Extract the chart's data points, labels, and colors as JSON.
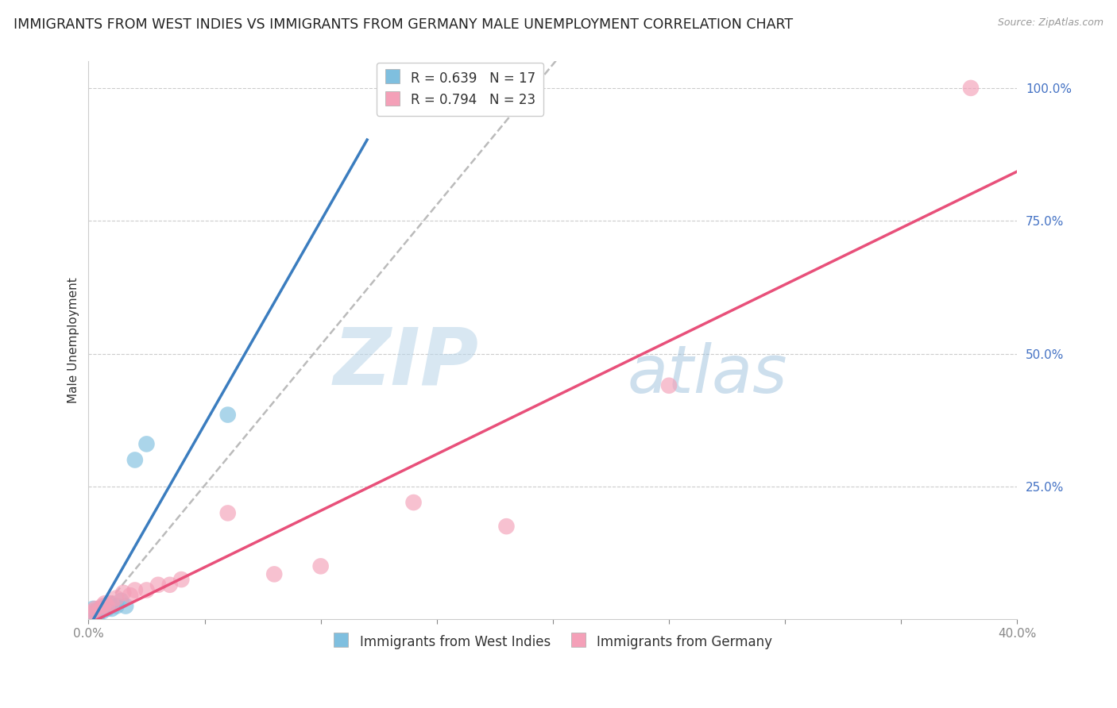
{
  "title": "IMMIGRANTS FROM WEST INDIES VS IMMIGRANTS FROM GERMANY MALE UNEMPLOYMENT CORRELATION CHART",
  "source": "Source: ZipAtlas.com",
  "ylabel": "Male Unemployment",
  "xlim": [
    0.0,
    0.4
  ],
  "ylim": [
    0.0,
    1.05
  ],
  "xticks": [
    0.0,
    0.05,
    0.1,
    0.15,
    0.2,
    0.25,
    0.3,
    0.35,
    0.4
  ],
  "ytick_positions": [
    0.0,
    0.25,
    0.5,
    0.75,
    1.0
  ],
  "ytick_labels": [
    "",
    "25.0%",
    "50.0%",
    "75.0%",
    "100.0%"
  ],
  "grid_color": "#cccccc",
  "watermark_ZIP": "ZIP",
  "watermark_atlas": "atlas",
  "blue_color": "#7fbfdf",
  "pink_color": "#f4a0b8",
  "blue_scatter": [
    [
      0.001,
      0.005
    ],
    [
      0.002,
      0.01
    ],
    [
      0.002,
      0.02
    ],
    [
      0.003,
      0.015
    ],
    [
      0.004,
      0.01
    ],
    [
      0.005,
      0.02
    ],
    [
      0.006,
      0.015
    ],
    [
      0.007,
      0.025
    ],
    [
      0.008,
      0.02
    ],
    [
      0.009,
      0.03
    ],
    [
      0.01,
      0.02
    ],
    [
      0.012,
      0.025
    ],
    [
      0.014,
      0.035
    ],
    [
      0.016,
      0.025
    ],
    [
      0.02,
      0.3
    ],
    [
      0.025,
      0.33
    ],
    [
      0.06,
      0.385
    ]
  ],
  "pink_scatter": [
    [
      0.001,
      0.01
    ],
    [
      0.002,
      0.015
    ],
    [
      0.003,
      0.02
    ],
    [
      0.005,
      0.02
    ],
    [
      0.006,
      0.025
    ],
    [
      0.007,
      0.03
    ],
    [
      0.008,
      0.025
    ],
    [
      0.01,
      0.03
    ],
    [
      0.012,
      0.04
    ],
    [
      0.015,
      0.05
    ],
    [
      0.018,
      0.045
    ],
    [
      0.02,
      0.055
    ],
    [
      0.025,
      0.055
    ],
    [
      0.03,
      0.065
    ],
    [
      0.035,
      0.065
    ],
    [
      0.04,
      0.075
    ],
    [
      0.06,
      0.2
    ],
    [
      0.08,
      0.085
    ],
    [
      0.1,
      0.1
    ],
    [
      0.14,
      0.22
    ],
    [
      0.18,
      0.175
    ],
    [
      0.25,
      0.44
    ],
    [
      0.38,
      1.0
    ]
  ],
  "R_blue": 0.639,
  "N_blue": 17,
  "R_pink": 0.794,
  "N_pink": 23,
  "legend_blue": "Immigrants from West Indies",
  "legend_pink": "Immigrants from Germany",
  "blue_line_color": "#3b7dbf",
  "pink_line_color": "#e8507a",
  "dashed_line_color": "#bbbbbb",
  "title_fontsize": 12.5,
  "label_fontsize": 11,
  "tick_fontsize": 11,
  "legend_fontsize": 12,
  "tick_color": "#4472c4"
}
